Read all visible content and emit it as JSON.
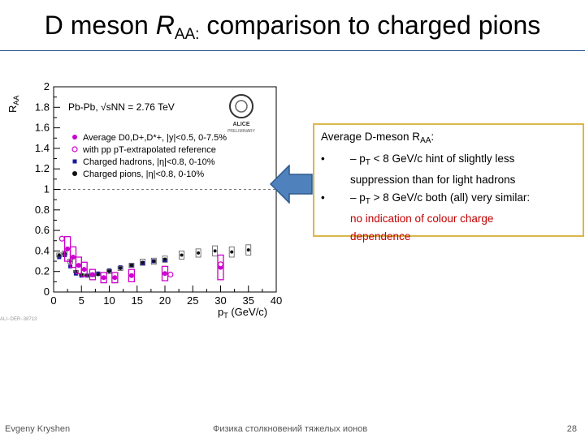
{
  "slide": {
    "title": {
      "prefix": "D meson ",
      "r": "R",
      "sub": "AA:",
      "suffix": " comparison to charged pions"
    },
    "footer": {
      "author": "Evgeny Kryshen",
      "course": "Физика столкновений тяжелых ионов",
      "page": "28"
    }
  },
  "figure": {
    "collision": "Pb-Pb, √sNN = 2.76 TeV",
    "logo_text": [
      "ALICE",
      "PRELIMINARY"
    ],
    "side_label": "ALI−DER−38713"
  },
  "callout": {
    "line1": "Average D-meson R",
    "line1_sub": "AA",
    "line1_end": ":",
    "bullet": "•",
    "b1_a": "– p",
    "b1_sub": "T",
    "b1_b": " < 8 GeV/c hint of slightly less",
    "b1_c": "suppression than for light hadrons",
    "b2_a": "– p",
    "b2_sub": "T",
    "b2_b": " > 8 GeV/c both (all) very similar:",
    "b2_c": "no indication of colour charge",
    "b2_d": "dependence"
  },
  "chart_data": {
    "type": "scatter",
    "ylabel": "R_AA",
    "xlabel": "p_T (GeV/c)",
    "xlim": [
      0,
      40
    ],
    "ylim": [
      0,
      2
    ],
    "x_ticks": [
      0,
      5,
      10,
      15,
      20,
      25,
      30,
      35,
      40
    ],
    "y_ticks": [
      0,
      0.2,
      0.4,
      0.6,
      0.8,
      1,
      1.2,
      1.4,
      1.6,
      1.8,
      2
    ],
    "reference_line": 1,
    "legend": [
      {
        "label": "Average D0,D+,D*+, |y|<0.5, 0-7.5%",
        "marker": "filled-circle",
        "color": "#cc00cc"
      },
      {
        "label": "with pp pT-extrapolated reference",
        "marker": "open-circle",
        "color": "#cc00cc"
      },
      {
        "label": "Charged hadrons, |η|<0.8, 0-10%",
        "marker": "filled-square",
        "color": "#1a1aa0"
      },
      {
        "label": "Charged pions, |η|<0.8, 0-10%",
        "marker": "filled-circle",
        "color": "#111111"
      }
    ],
    "series": [
      {
        "name": "Average D0,D+,D*+, |y|<0.5, 0-7.5%",
        "color": "#cc00cc",
        "x": [
          2.5,
          3.5,
          4.5,
          5.5,
          7,
          9,
          11,
          14,
          20,
          30
        ],
        "y": [
          0.42,
          0.34,
          0.26,
          0.22,
          0.17,
          0.14,
          0.14,
          0.16,
          0.18,
          0.24
        ],
        "yerr": [
          0.12,
          0.1,
          0.08,
          0.07,
          0.05,
          0.05,
          0.05,
          0.06,
          0.07,
          0.12
        ]
      },
      {
        "name": "with pp pT-extrapolated reference",
        "color": "#cc00cc",
        "x": [
          1.5,
          21,
          30
        ],
        "y": [
          0.52,
          0.17,
          0.27
        ],
        "yerr": [
          0.1,
          0.05,
          0.08
        ]
      },
      {
        "name": "Charged hadrons, |η|<0.8, 0-10%",
        "color": "#1a1aa0",
        "x": [
          1,
          2,
          3,
          4,
          5,
          6,
          7,
          8,
          10,
          12,
          14,
          16,
          18,
          20
        ],
        "y": [
          0.34,
          0.36,
          0.25,
          0.18,
          0.16,
          0.16,
          0.17,
          0.18,
          0.21,
          0.24,
          0.26,
          0.28,
          0.3,
          0.31
        ],
        "yerr": [
          0.02,
          0.02,
          0.02,
          0.01,
          0.01,
          0.01,
          0.01,
          0.01,
          0.02,
          0.02,
          0.02,
          0.03,
          0.03,
          0.03
        ]
      },
      {
        "name": "Charged pions, |η|<0.8, 0-10%",
        "color": "#111111",
        "x": [
          1,
          2,
          3,
          4,
          5,
          6,
          7,
          8,
          10,
          12,
          14,
          16,
          18,
          20,
          23,
          26,
          29,
          32,
          35
        ],
        "y": [
          0.36,
          0.38,
          0.3,
          0.2,
          0.17,
          0.16,
          0.16,
          0.17,
          0.2,
          0.23,
          0.26,
          0.29,
          0.3,
          0.32,
          0.36,
          0.38,
          0.4,
          0.39,
          0.41
        ],
        "yerr": [
          0.02,
          0.02,
          0.02,
          0.01,
          0.01,
          0.01,
          0.01,
          0.01,
          0.02,
          0.02,
          0.02,
          0.03,
          0.03,
          0.03,
          0.04,
          0.04,
          0.05,
          0.05,
          0.05
        ]
      }
    ]
  }
}
